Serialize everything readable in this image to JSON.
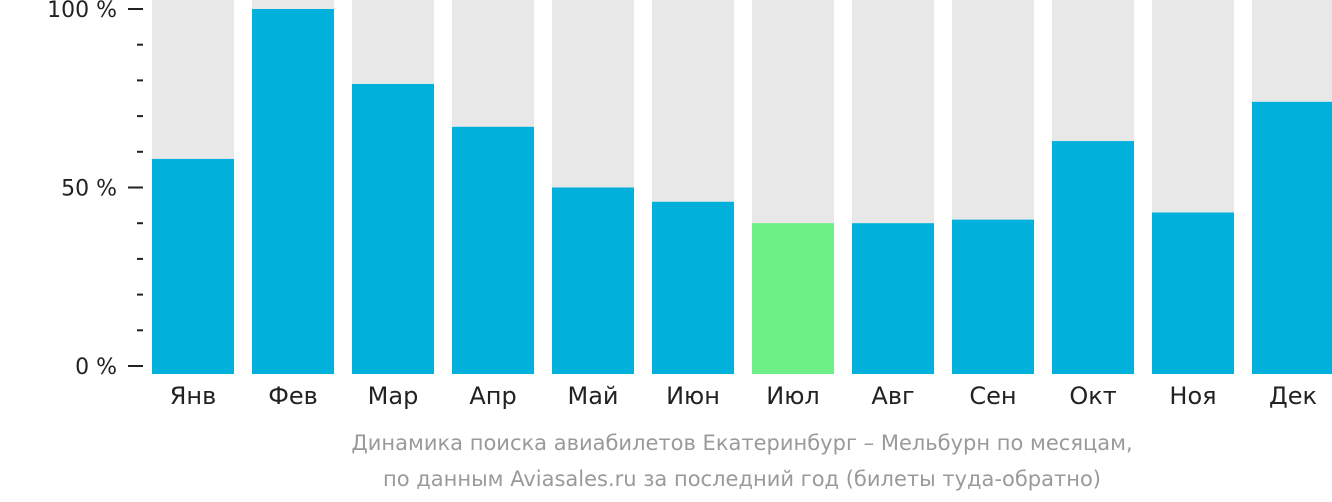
{
  "chart_data": {
    "type": "bar",
    "categories": [
      "Янв",
      "Фев",
      "Мар",
      "Апр",
      "Май",
      "Июн",
      "Июл",
      "Авг",
      "Сен",
      "Окт",
      "Ноя",
      "Дек"
    ],
    "values": [
      58,
      100,
      79,
      67,
      50,
      46,
      40,
      40,
      41,
      63,
      43,
      74
    ],
    "highlight_index": 6,
    "ylim": [
      0,
      100
    ],
    "y_ticks": [
      {
        "value": 0,
        "label": "0 %"
      },
      {
        "value": 50,
        "label": "50 %"
      },
      {
        "value": 100,
        "label": "100 %"
      }
    ],
    "y_minor_step": 10,
    "colors": {
      "bar": "#02b0dc",
      "highlight": "#6cf086",
      "track": "#e8e8e8",
      "axis": "#222222"
    }
  },
  "caption": {
    "line1": "Динамика поиска авиабилетов Екатеринбург – Мельбурн по месяцам,",
    "line2": "по данным Aviasales.ru за последний год (билеты туда-обратно)"
  }
}
